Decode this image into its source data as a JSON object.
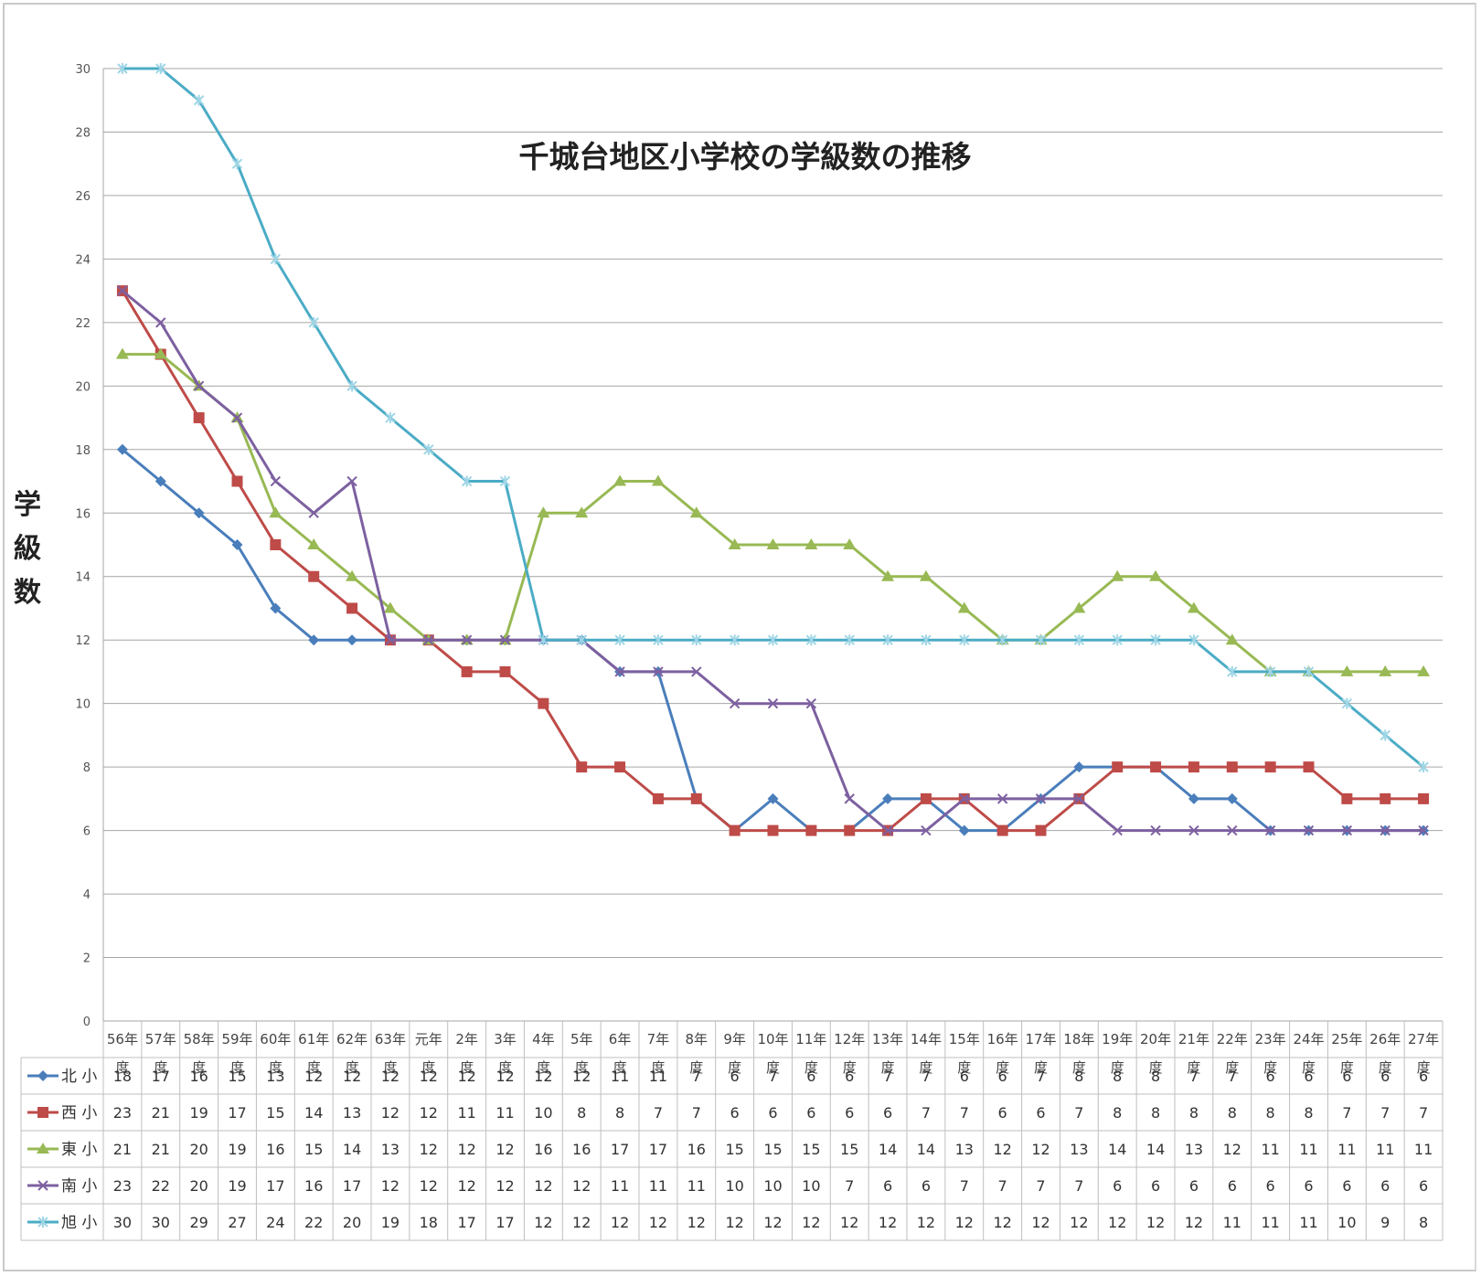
{
  "chart_data": {
    "type": "line",
    "title": "千城台地区小学校の学級数の推移",
    "xlabel": "",
    "ylabel": "学級数",
    "ylim": [
      0,
      30
    ],
    "yticks": [
      0,
      2,
      4,
      6,
      8,
      10,
      12,
      14,
      16,
      18,
      20,
      22,
      24,
      26,
      28,
      30
    ],
    "grid": true,
    "legend": "table-below",
    "categories": [
      [
        "56年",
        "度"
      ],
      [
        "57年",
        "度"
      ],
      [
        "58年",
        "度"
      ],
      [
        "59年",
        "度"
      ],
      [
        "60年",
        "度"
      ],
      [
        "61年",
        "度"
      ],
      [
        "62年",
        "度"
      ],
      [
        "63年",
        "度"
      ],
      [
        "元年",
        "度"
      ],
      [
        "2年",
        "度"
      ],
      [
        "3年",
        "度"
      ],
      [
        "4年",
        "度"
      ],
      [
        "5年",
        "度"
      ],
      [
        "6年",
        "度"
      ],
      [
        "7年",
        "度"
      ],
      [
        "8年",
        "度"
      ],
      [
        "9年",
        "度"
      ],
      [
        "10年",
        "度"
      ],
      [
        "11年",
        "度"
      ],
      [
        "12年",
        "度"
      ],
      [
        "13年",
        "度"
      ],
      [
        "14年",
        "度"
      ],
      [
        "15年",
        "度"
      ],
      [
        "16年",
        "度"
      ],
      [
        "17年",
        "度"
      ],
      [
        "18年",
        "度"
      ],
      [
        "19年",
        "度"
      ],
      [
        "20年",
        "度"
      ],
      [
        "21年",
        "度"
      ],
      [
        "22年",
        "度"
      ],
      [
        "23年",
        "度"
      ],
      [
        "24年",
        "度"
      ],
      [
        "25年",
        "度"
      ],
      [
        "26年",
        "度"
      ],
      [
        "27年",
        "度"
      ]
    ],
    "series": [
      {
        "name": "北 小",
        "color": "#4a7ebb",
        "marker": "diamond",
        "values": [
          18,
          17,
          16,
          15,
          13,
          12,
          12,
          12,
          12,
          12,
          12,
          12,
          12,
          11,
          11,
          7,
          6,
          7,
          6,
          6,
          7,
          7,
          6,
          6,
          7,
          8,
          8,
          8,
          7,
          7,
          6,
          6,
          6,
          6,
          6
        ]
      },
      {
        "name": "西 小",
        "color": "#be4b48",
        "marker": "square",
        "values": [
          23,
          21,
          19,
          17,
          15,
          14,
          13,
          12,
          12,
          11,
          11,
          10,
          8,
          8,
          7,
          7,
          6,
          6,
          6,
          6,
          6,
          7,
          7,
          6,
          6,
          7,
          8,
          8,
          8,
          8,
          8,
          8,
          7,
          7,
          7
        ]
      },
      {
        "name": "東 小",
        "color": "#98b954",
        "marker": "triangle",
        "values": [
          21,
          21,
          20,
          19,
          16,
          15,
          14,
          13,
          12,
          12,
          12,
          16,
          16,
          17,
          17,
          16,
          15,
          15,
          15,
          15,
          14,
          14,
          13,
          12,
          12,
          13,
          14,
          14,
          13,
          12,
          11,
          11,
          11,
          11,
          11
        ]
      },
      {
        "name": "南 小",
        "color": "#7d60a0",
        "marker": "x",
        "values": [
          23,
          22,
          20,
          19,
          17,
          16,
          17,
          12,
          12,
          12,
          12,
          12,
          12,
          11,
          11,
          11,
          10,
          10,
          10,
          7,
          6,
          6,
          7,
          7,
          7,
          7,
          6,
          6,
          6,
          6,
          6,
          6,
          6,
          6,
          6
        ]
      },
      {
        "name": "旭 小",
        "color": "#4bacc6",
        "marker": "star",
        "values": [
          30,
          30,
          29,
          27,
          24,
          22,
          20,
          19,
          18,
          17,
          17,
          12,
          12,
          12,
          12,
          12,
          12,
          12,
          12,
          12,
          12,
          12,
          12,
          12,
          12,
          12,
          12,
          12,
          12,
          11,
          11,
          11,
          10,
          9,
          8
        ]
      }
    ]
  }
}
